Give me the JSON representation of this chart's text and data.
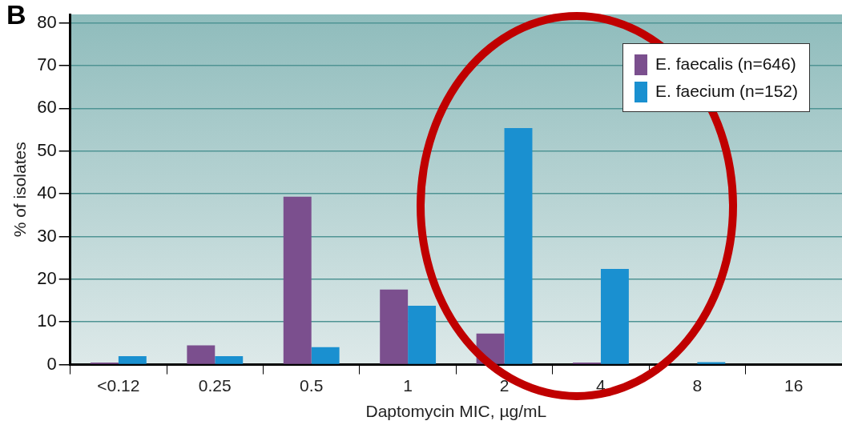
{
  "chart_data": {
    "type": "bar",
    "xlabel": "Daptomycin MIC, µg/mL",
    "ylabel": "% of isolates",
    "annotations": [
      "B"
    ],
    "categories": [
      "<0.12",
      "0.25",
      "0.5",
      "1",
      "2",
      "4",
      "8",
      "16"
    ],
    "series": [
      {
        "name": "E. faecalis (n=646)",
        "color": "#7b4f8e",
        "values": [
          0.5,
          4.5,
          39.3,
          17.6,
          7.3,
          0.5,
          0,
          0
        ]
      },
      {
        "name": "E. faecium (n=152)",
        "color": "#1a90d0",
        "values": [
          2,
          2,
          4.1,
          13.8,
          55.4,
          22.4,
          0.6,
          0
        ]
      }
    ],
    "ylim": [
      0,
      82
    ],
    "yticks": [
      0,
      10,
      20,
      30,
      40,
      50,
      60,
      70,
      80
    ],
    "grid": "y",
    "legend": "top right"
  }
}
